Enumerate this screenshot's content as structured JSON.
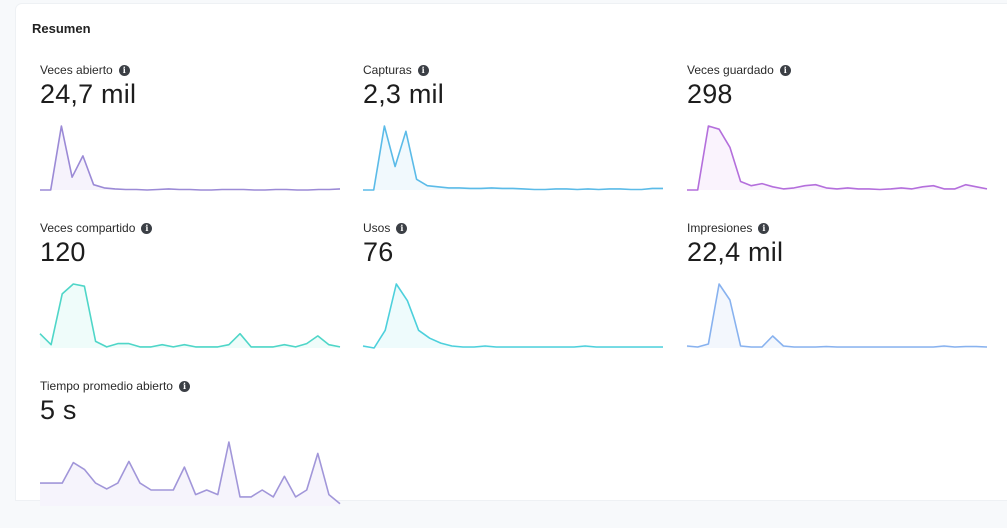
{
  "summary": {
    "title": "Resumen",
    "metrics": [
      {
        "label": "Veces abierto",
        "value": "24,7 mil",
        "color": "#9b8ad6",
        "fill": "#f6f3fc",
        "icon": "info-icon",
        "trend": [
          0,
          0,
          60,
          12,
          32,
          5,
          2,
          1,
          0.5,
          0.5,
          0,
          0.5,
          1,
          0.5,
          0.5,
          0,
          0,
          0.5,
          0.5,
          0.5,
          0,
          0,
          0.5,
          0.5,
          0,
          0,
          0.5,
          0.5,
          1
        ]
      },
      {
        "label": "Capturas",
        "value": "2,3 mil",
        "color": "#5bbbe8",
        "fill": "#f1f9fd",
        "icon": "info-icon",
        "trend": [
          0,
          0,
          60,
          22,
          55,
          10,
          4,
          3,
          2,
          2,
          1.5,
          1.5,
          2,
          1.5,
          1.5,
          1,
          0.5,
          0.5,
          1,
          1,
          0.5,
          1,
          0.5,
          1,
          1,
          0.5,
          0.5,
          1.5,
          1.5
        ]
      },
      {
        "label": "Veces guardado",
        "value": "298",
        "color": "#b46fdc",
        "fill": "#faf3fd",
        "icon": "info-icon",
        "trend": [
          0,
          0,
          60,
          57,
          40,
          8,
          4,
          6,
          3,
          1,
          2,
          4,
          5,
          2,
          1,
          2,
          1,
          1,
          0.5,
          1,
          2,
          1,
          3,
          4,
          1,
          1,
          5,
          3,
          1
        ]
      },
      {
        "label": "Veces compartido",
        "value": "120",
        "color": "#4fd6c8",
        "fill": "#effcfa",
        "icon": "info-icon",
        "trend": [
          13,
          3,
          49,
          58,
          56,
          6,
          1,
          4,
          4,
          1,
          1,
          3,
          1,
          3,
          1,
          1,
          1,
          3,
          13,
          1,
          1,
          1,
          3,
          1,
          4,
          11,
          3,
          1
        ]
      },
      {
        "label": "Usos",
        "value": "76",
        "color": "#4dd0dc",
        "fill": "#eefbfc",
        "icon": "info-icon",
        "trend": [
          2,
          0,
          18,
          65,
          48,
          18,
          10,
          5,
          2,
          1,
          1,
          2,
          1,
          1,
          1,
          1,
          1,
          1,
          1,
          1,
          2,
          1,
          1,
          1,
          1,
          1,
          1,
          1
        ]
      },
      {
        "label": "Impresiones",
        "value": "22,4 mil",
        "color": "#88b2ef",
        "fill": "#f3f7fd",
        "icon": "info-icon",
        "trend": [
          2,
          1,
          4,
          64,
          48,
          2,
          1,
          1,
          12,
          2,
          1,
          1,
          1,
          1.5,
          1,
          1,
          1,
          1,
          1,
          1,
          1,
          1,
          1,
          1,
          2,
          1,
          1.5,
          1.5,
          1
        ]
      },
      {
        "label": "Tiempo promedio abierto",
        "value": "5 s",
        "color": "#a196d9",
        "fill": "#f6f4fc",
        "icon": "info-icon",
        "trend": [
          20,
          20,
          20,
          38,
          32,
          20,
          15,
          20,
          39,
          20,
          14,
          14,
          14,
          34,
          10,
          14,
          10,
          56,
          8,
          8,
          14,
          8,
          26,
          8,
          14,
          46,
          10,
          2
        ]
      }
    ]
  }
}
